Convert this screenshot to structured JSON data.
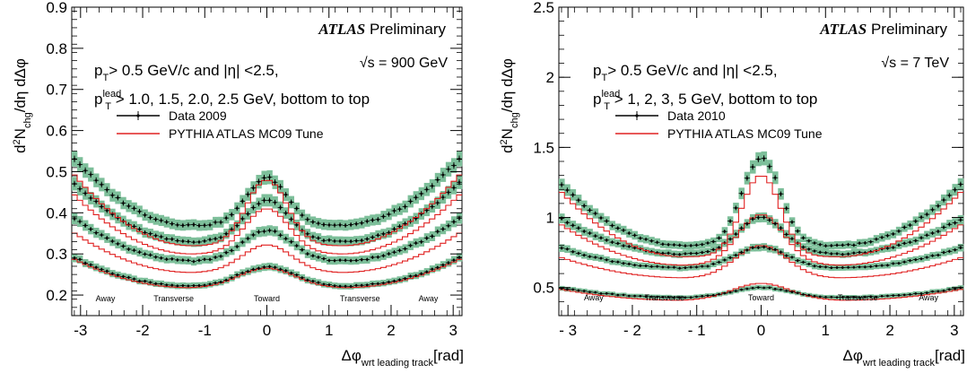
{
  "chart_data": [
    {
      "type": "line",
      "ylabel_parts": [
        "d",
        "2",
        "N",
        "chg",
        "/d",
        "η d",
        "Δ",
        "φ"
      ],
      "xlabel_parts": [
        "Δ",
        "φ",
        "wrt leading track",
        "[rad]"
      ],
      "xlim": [
        -3.14159,
        3.14159
      ],
      "ylim": [
        0.15,
        0.9
      ],
      "xticks": [
        -3,
        -2,
        -1,
        0,
        1,
        2,
        3
      ],
      "xtick_labels": [
        "-3",
        "-2",
        "-1",
        "0",
        "1",
        "2",
        "3"
      ],
      "yticks": [
        0.2,
        0.3,
        0.4,
        0.5,
        0.6,
        0.7,
        0.8,
        0.9
      ],
      "ytick_labels": [
        "0.2",
        "0.3",
        "0.4",
        "0.5",
        "0.6",
        "0.7",
        "0.8",
        "0.9"
      ],
      "atlas": "ATLAS",
      "preliminary": "Preliminary",
      "energy": "√s = 900 GeV",
      "cut_line1": "p_T > 0.5  GeV/c and |η| <2.5,",
      "cut_line2": "p_T^lead > 1.0, 1.5, 2.0, 2.5 GeV, bottom to top",
      "cut1_parts": [
        "p",
        "T",
        "> 0.5  GeV/c and |η| <2.5,"
      ],
      "cut2_parts": [
        "p",
        "lead",
        "T",
        "> 1.0, 1.5, 2.0, 2.5 GeV, bottom to top"
      ],
      "legend": {
        "data": "Data 2009",
        "mc": "PYTHIA ATLAS MC09 Tune"
      },
      "region_labels": [
        "Away",
        "Transverse",
        "Toward",
        "Transverse",
        "Away"
      ],
      "region_x": [
        -2.6,
        -1.5,
        0.0,
        1.5,
        2.6
      ],
      "region_y": 0.185,
      "series": [
        {
          "name": "p_T^lead > 1.0 GeV",
          "data_values": {
            "away": 0.295,
            "min": 0.222,
            "toward": 0.268,
            "phimin": 1.25,
            "w": 0.45
          },
          "mc_values": {
            "away": 0.29,
            "min": 0.218,
            "toward": 0.265,
            "phimin": 1.25,
            "w": 0.45
          }
        },
        {
          "name": "p_T^lead > 1.5 GeV",
          "data_values": {
            "away": 0.392,
            "min": 0.283,
            "toward": 0.357,
            "phimin": 1.2,
            "w": 0.4
          },
          "mc_values": {
            "away": 0.355,
            "min": 0.255,
            "toward": 0.322,
            "phimin": 1.2,
            "w": 0.4
          }
        },
        {
          "name": "p_T^lead > 2.0 GeV",
          "data_values": {
            "away": 0.48,
            "min": 0.33,
            "toward": 0.43,
            "phimin": 1.2,
            "w": 0.36
          },
          "mc_values": {
            "away": 0.45,
            "min": 0.3,
            "toward": 0.41,
            "phimin": 1.2,
            "w": 0.36
          }
        },
        {
          "name": "p_T^lead > 2.5 GeV",
          "data_values": {
            "away": 0.54,
            "min": 0.37,
            "toward": 0.485,
            "phimin": 1.2,
            "w": 0.33
          },
          "mc_values": {
            "away": 0.5,
            "min": 0.32,
            "toward": 0.48,
            "phimin": 1.2,
            "w": 0.33
          }
        }
      ]
    },
    {
      "type": "line",
      "ylabel_parts": [
        "d",
        "2",
        "N",
        "chg",
        "/d",
        "η d",
        "Δ",
        "φ"
      ],
      "xlabel_parts": [
        "Δ",
        "φ",
        "wrt leading track",
        "[rad]"
      ],
      "xlim": [
        -3.14159,
        3.14159
      ],
      "ylim": [
        0.3,
        2.5
      ],
      "xticks": [
        -3,
        -2,
        -1,
        0,
        1,
        2,
        3
      ],
      "xtick_labels": [
        "- 3",
        "- 2",
        "- 1",
        "0",
        "1",
        "2",
        "3"
      ],
      "yticks": [
        0.5,
        1.0,
        1.5,
        2.0,
        2.5
      ],
      "ytick_labels": [
        "0.5",
        "1",
        "1.5",
        "2",
        "2.5"
      ],
      "atlas": "ATLAS",
      "preliminary": "Preliminary",
      "energy": "√s = 7 TeV",
      "cut_line1": "p_T > 0.5  GeV/c and |η| <2.5,",
      "cut_line2": "p_T^lead > 1, 2, 3, 5 GeV, bottom to top",
      "cut1_parts": [
        "p",
        "T",
        "> 0.5  GeV/c and |η| <2.5,"
      ],
      "cut2_parts": [
        "p",
        "lead",
        "T",
        "> 1, 2, 3, 5 GeV, bottom to top"
      ],
      "legend": {
        "data": "Data 2010",
        "mc": "PYTHIA ATLAS MC09 Tune"
      },
      "region_labels": [
        "Away",
        "Transverse",
        "Toward",
        "Transverse",
        "Away"
      ],
      "region_x": [
        -2.6,
        -1.5,
        0.0,
        1.5,
        2.6
      ],
      "region_y": 0.41,
      "series": [
        {
          "name": "p_T^lead > 1 GeV",
          "data_values": {
            "away": 0.5,
            "min": 0.43,
            "toward": 0.5,
            "phimin": 1.25,
            "w": 0.45
          },
          "mc_values": {
            "away": 0.49,
            "min": 0.41,
            "toward": 0.53,
            "phimin": 1.25,
            "w": 0.45
          }
        },
        {
          "name": "p_T^lead > 2 GeV",
          "data_values": {
            "away": 0.79,
            "min": 0.64,
            "toward": 0.79,
            "phimin": 1.2,
            "w": 0.4
          },
          "mc_values": {
            "away": 0.72,
            "min": 0.57,
            "toward": 0.8,
            "phimin": 1.2,
            "w": 0.4
          }
        },
        {
          "name": "p_T^lead > 3 GeV",
          "data_values": {
            "away": 1.0,
            "min": 0.74,
            "toward": 1.0,
            "phimin": 1.2,
            "w": 0.36
          },
          "mc_values": {
            "away": 0.96,
            "min": 0.66,
            "toward": 1.02,
            "phimin": 1.2,
            "w": 0.36
          }
        },
        {
          "name": "p_T^lead > 5 GeV",
          "data_values": {
            "away": 1.25,
            "min": 0.8,
            "toward": 1.42,
            "phimin": 1.2,
            "w": 0.3
          },
          "mc_values": {
            "away": 1.2,
            "min": 0.72,
            "toward": 1.3,
            "phimin": 1.2,
            "w": 0.3
          }
        }
      ]
    }
  ],
  "colors": {
    "band": "#7dbf9a",
    "mc": "#e02020",
    "data": "#000000"
  }
}
